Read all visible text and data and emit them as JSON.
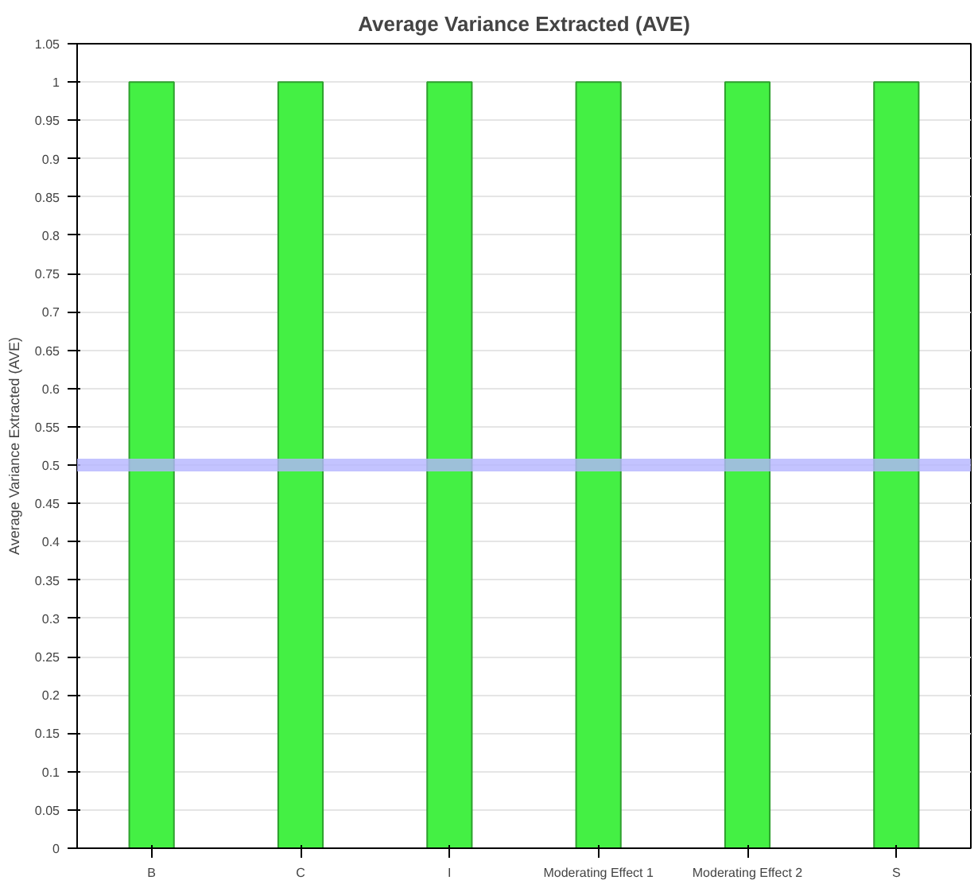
{
  "chart_data": {
    "type": "bar",
    "title": "Average Variance Extracted (AVE)",
    "ylabel": "Average Variance Extracted (AVE)",
    "categories": [
      "B",
      "C",
      "I",
      "Moderating Effect 1",
      "Moderating Effect 2",
      "S"
    ],
    "values": [
      1,
      1,
      1,
      1,
      1,
      1
    ],
    "color": "#44f044",
    "ylim": [
      0,
      1.05
    ],
    "yticks": [
      0,
      0.05,
      0.1,
      0.15,
      0.2,
      0.25,
      0.3,
      0.35,
      0.4,
      0.45,
      0.5,
      0.55,
      0.6,
      0.65,
      0.7,
      0.75,
      0.8,
      0.85,
      0.9,
      0.95,
      1,
      1.05
    ],
    "ref_lines": [
      {
        "axis": "y",
        "value": 0.5,
        "color": "#b4b4ff"
      }
    ],
    "grid": "y"
  }
}
